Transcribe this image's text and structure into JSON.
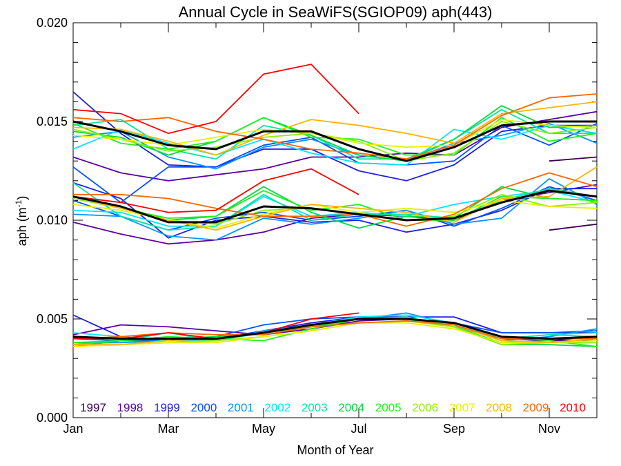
{
  "chart_data": {
    "type": "line",
    "title": "Annual Cycle in SeaWiFS(SGIOP09) aph(443)",
    "xlabel": "Month of Year",
    "ylabel_main": "aph (m",
    "ylabel_sup": "-1",
    "ylabel_close": ")",
    "xlim": [
      1,
      12
    ],
    "ylim": [
      0.0,
      0.02
    ],
    "x_ticks": [
      {
        "value": 1,
        "label": "Jan"
      },
      {
        "value": 3,
        "label": "Mar"
      },
      {
        "value": 5,
        "label": "May"
      },
      {
        "value": 7,
        "label": "Jul"
      },
      {
        "value": 9,
        "label": "Sep"
      },
      {
        "value": 11,
        "label": "Nov"
      }
    ],
    "y_ticks": [
      {
        "value": 0.0,
        "label": "0.000"
      },
      {
        "value": 0.005,
        "label": "0.005"
      },
      {
        "value": 0.01,
        "label": "0.010"
      },
      {
        "value": 0.015,
        "label": "0.015"
      },
      {
        "value": 0.02,
        "label": "0.020"
      }
    ],
    "months": [
      1,
      2,
      3,
      4,
      5,
      6,
      7,
      8,
      9,
      10,
      11,
      12
    ],
    "legend_placement": "bottom",
    "series": [
      {
        "name": "1997",
        "color": "#3c0050",
        "high": [
          null,
          null,
          null,
          null,
          null,
          null,
          null,
          null,
          null,
          null,
          0.013,
          0.0132
        ],
        "mid": [
          null,
          null,
          null,
          null,
          null,
          null,
          null,
          null,
          null,
          null,
          0.0095,
          0.0098
        ],
        "low": [
          null,
          null,
          null,
          null,
          null,
          null,
          null,
          null,
          null,
          null,
          0.0039,
          0.0041
        ]
      },
      {
        "name": "1998",
        "color": "#5a00a0",
        "high": [
          0.0132,
          0.0124,
          0.012,
          0.0123,
          0.0126,
          0.0132,
          0.0132,
          0.0134,
          0.0133,
          0.0147,
          0.0151,
          0.0155
        ],
        "mid": [
          0.0099,
          0.0093,
          0.0088,
          0.009,
          0.0094,
          0.0101,
          0.0103,
          0.0102,
          0.01,
          0.011,
          0.0114,
          0.0118
        ],
        "low": [
          0.0042,
          0.0047,
          0.0046,
          0.0044,
          0.0042,
          0.0045,
          0.0049,
          0.005,
          0.0046,
          0.004,
          0.0039,
          0.0039
        ]
      },
      {
        "name": "1999",
        "color": "#1e1ee6",
        "high": [
          0.0165,
          0.0144,
          0.0128,
          0.0127,
          0.0136,
          0.0136,
          0.0125,
          0.012,
          0.0128,
          0.0145,
          0.0148,
          0.0148
        ],
        "mid": [
          0.0119,
          0.0111,
          0.0091,
          0.01,
          0.0102,
          0.0099,
          0.01,
          0.0094,
          0.0098,
          0.0105,
          0.0116,
          0.0116
        ],
        "low": [
          0.0052,
          0.0041,
          0.0039,
          0.004,
          0.0044,
          0.0048,
          0.0051,
          0.0051,
          0.0051,
          0.0043,
          0.0043,
          0.0043
        ]
      },
      {
        "name": "2000",
        "color": "#0050ff",
        "high": [
          0.0127,
          0.0109,
          0.0127,
          0.0127,
          0.0138,
          0.0142,
          0.0129,
          0.0128,
          0.013,
          0.0148,
          0.0138,
          0.0149
        ],
        "mid": [
          0.011,
          0.0102,
          0.0095,
          0.0101,
          0.0104,
          0.01,
          0.0102,
          0.0105,
          0.0097,
          0.0106,
          0.0117,
          0.011
        ],
        "low": [
          0.004,
          0.0039,
          0.0039,
          0.0041,
          0.0047,
          0.005,
          0.0051,
          0.005,
          0.0048,
          0.0043,
          0.0043,
          0.0044
        ]
      },
      {
        "name": "2001",
        "color": "#0096ff",
        "high": [
          0.0142,
          0.0145,
          0.0132,
          0.0126,
          0.0137,
          0.0141,
          0.0133,
          0.013,
          0.0139,
          0.0143,
          0.0149,
          0.0139
        ],
        "mid": [
          0.0103,
          0.0102,
          0.0092,
          0.009,
          0.0101,
          0.0098,
          0.0101,
          0.0105,
          0.0098,
          0.0101,
          0.0121,
          0.0108
        ],
        "low": [
          0.0038,
          0.0038,
          0.0039,
          0.0039,
          0.0044,
          0.0047,
          0.005,
          0.0053,
          0.0047,
          0.0039,
          0.0041,
          0.0045
        ]
      },
      {
        "name": "2002",
        "color": "#00e6ff",
        "high": [
          0.0136,
          0.0146,
          0.0139,
          0.0133,
          0.0141,
          0.0134,
          0.0129,
          0.0128,
          0.0146,
          0.0141,
          0.0148,
          0.0144
        ],
        "mid": [
          0.0105,
          0.0104,
          0.0097,
          0.0097,
          0.0112,
          0.0102,
          0.0104,
          0.0102,
          0.0108,
          0.0112,
          0.0115,
          0.0109
        ],
        "low": [
          0.0043,
          0.0041,
          0.0039,
          0.0039,
          0.0043,
          0.0047,
          0.0051,
          0.0052,
          0.0048,
          0.004,
          0.0042,
          0.0043
        ]
      },
      {
        "name": "2003",
        "color": "#00e6a0",
        "high": [
          0.0148,
          0.0151,
          0.0136,
          0.0131,
          0.0148,
          0.0143,
          0.0131,
          0.0131,
          0.0141,
          0.0156,
          0.0144,
          0.0144
        ],
        "mid": [
          0.0119,
          0.0102,
          0.0095,
          0.0097,
          0.0113,
          0.01,
          0.0103,
          0.0103,
          0.0101,
          0.011,
          0.0116,
          0.0112
        ],
        "low": [
          0.0037,
          0.0039,
          0.0043,
          0.0039,
          0.0043,
          0.0047,
          0.005,
          0.0051,
          0.0046,
          0.004,
          0.0042,
          0.0041
        ]
      },
      {
        "name": "2004",
        "color": "#00dc3c",
        "high": [
          0.0145,
          0.0142,
          0.0133,
          0.014,
          0.0152,
          0.0143,
          0.0133,
          0.013,
          0.0141,
          0.0158,
          0.0147,
          0.0148
        ],
        "mid": [
          0.0112,
          0.0107,
          0.01,
          0.0102,
          0.0117,
          0.0104,
          0.0096,
          0.0102,
          0.0101,
          0.0117,
          0.0111,
          0.011
        ],
        "low": [
          0.0036,
          0.0039,
          0.004,
          0.0041,
          0.0043,
          0.0046,
          0.005,
          0.005,
          0.0046,
          0.0037,
          0.0037,
          0.0036
        ]
      },
      {
        "name": "2005",
        "color": "#1ef01e",
        "high": [
          0.0149,
          0.0139,
          0.0136,
          0.014,
          0.0152,
          0.0142,
          0.0141,
          0.0133,
          0.0133,
          0.0152,
          0.014,
          0.0144
        ],
        "mid": [
          0.0112,
          0.0106,
          0.0101,
          0.0102,
          0.0115,
          0.0105,
          0.0108,
          0.01,
          0.01,
          0.0112,
          0.0111,
          0.011
        ],
        "low": [
          0.0038,
          0.0039,
          0.0041,
          0.004,
          0.0039,
          0.0045,
          0.005,
          0.005,
          0.0046,
          0.0038,
          0.0039,
          0.0036
        ]
      },
      {
        "name": "2006",
        "color": "#8cf000",
        "high": [
          0.0146,
          0.0141,
          0.0135,
          0.0137,
          0.0142,
          0.0144,
          0.014,
          0.013,
          0.0134,
          0.015,
          0.0144,
          0.0147
        ],
        "mid": [
          0.0111,
          0.0106,
          0.01,
          0.0098,
          0.0105,
          0.0106,
          0.0103,
          0.01,
          0.0102,
          0.0113,
          0.0107,
          0.0109
        ],
        "low": [
          0.0036,
          0.0037,
          0.0038,
          0.0039,
          0.0041,
          0.0044,
          0.0048,
          0.0049,
          0.0046,
          0.0037,
          0.0038,
          0.0038
        ]
      },
      {
        "name": "2007",
        "color": "#e6f000",
        "high": [
          0.0143,
          0.0141,
          0.0138,
          0.0142,
          0.0146,
          0.0144,
          0.0139,
          0.0137,
          0.0138,
          0.0151,
          0.0148,
          0.0147
        ],
        "mid": [
          0.0108,
          0.0105,
          0.01,
          0.0096,
          0.0103,
          0.0108,
          0.0104,
          0.0106,
          0.0104,
          0.011,
          0.0107,
          0.0106
        ],
        "low": [
          0.0036,
          0.0037,
          0.0038,
          0.0038,
          0.0041,
          0.0044,
          0.0048,
          0.0048,
          0.0045,
          0.0038,
          0.0038,
          0.0039
        ]
      },
      {
        "name": "2008",
        "color": "#ffb400",
        "high": [
          0.0147,
          0.0146,
          0.014,
          0.0133,
          0.0143,
          0.0151,
          0.0148,
          0.0144,
          0.0139,
          0.0154,
          0.0157,
          0.016
        ],
        "mid": [
          0.0112,
          0.0106,
          0.01,
          0.0095,
          0.0102,
          0.0108,
          0.0106,
          0.0104,
          0.0099,
          0.0111,
          0.0112,
          0.0127
        ],
        "low": [
          0.0037,
          0.0037,
          0.0039,
          0.004,
          0.0043,
          0.0047,
          0.005,
          0.005,
          0.0047,
          0.0039,
          0.0038,
          0.004
        ]
      },
      {
        "name": "2009",
        "color": "#ff6400",
        "high": [
          0.0152,
          0.015,
          0.0152,
          0.0145,
          0.0141,
          0.0136,
          0.0134,
          0.0131,
          0.0138,
          0.0153,
          0.0162,
          0.0164
        ],
        "mid": [
          0.0113,
          0.0113,
          0.0111,
          0.0106,
          0.0102,
          0.0102,
          0.0103,
          0.0097,
          0.0103,
          0.0116,
          0.0124,
          0.0117
        ],
        "low": [
          0.004,
          0.0041,
          0.0043,
          0.0042,
          0.0042,
          0.0046,
          0.0048,
          0.0049,
          0.0047,
          0.004,
          0.004,
          0.004
        ]
      },
      {
        "name": "2010",
        "color": "#ff0000",
        "high": [
          0.0156,
          0.0154,
          0.0144,
          0.015,
          0.0174,
          0.0179,
          0.0154,
          null,
          null,
          null,
          null,
          null
        ],
        "mid": [
          0.0112,
          0.0109,
          0.0104,
          0.0105,
          0.012,
          0.0126,
          0.0113,
          null,
          null,
          null,
          null,
          null
        ],
        "low": [
          0.004,
          0.004,
          0.0043,
          0.004,
          0.0043,
          0.005,
          0.0053,
          null,
          null,
          null,
          null,
          null
        ]
      }
    ],
    "mean": {
      "color": "#000000",
      "high": [
        0.015,
        0.0145,
        0.0138,
        0.0136,
        0.0145,
        0.0145,
        0.0136,
        0.013,
        0.0137,
        0.0148,
        0.015,
        0.015
      ],
      "mid": [
        0.0112,
        0.0107,
        0.0099,
        0.0099,
        0.0107,
        0.0106,
        0.0103,
        0.01,
        0.0101,
        0.0109,
        0.0115,
        0.0112
      ],
      "low": [
        0.0041,
        0.004,
        0.004,
        0.004,
        0.0043,
        0.0047,
        0.005,
        0.005,
        0.0048,
        0.0041,
        0.004,
        0.0041
      ]
    }
  }
}
